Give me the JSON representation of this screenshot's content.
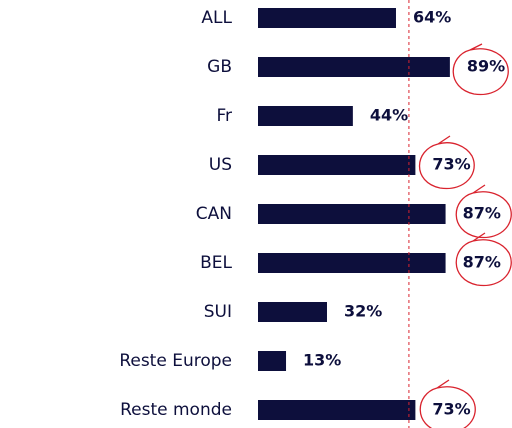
{
  "chart_data": {
    "type": "bar",
    "orientation": "horizontal",
    "categories": [
      "ALL",
      "GB",
      "Fr",
      "US",
      "CAN",
      "BEL",
      "SUI",
      "Reste Europe",
      "Reste monde"
    ],
    "values": [
      64,
      89,
      44,
      73,
      87,
      87,
      32,
      13,
      73
    ],
    "value_labels": [
      "64%",
      "89%",
      "44%",
      "73%",
      "87%",
      "87%",
      "32%",
      "13%",
      "73%"
    ],
    "color": "#0d0f3c",
    "reference_line": 70,
    "reference_color": "#d9232e"
  }
}
